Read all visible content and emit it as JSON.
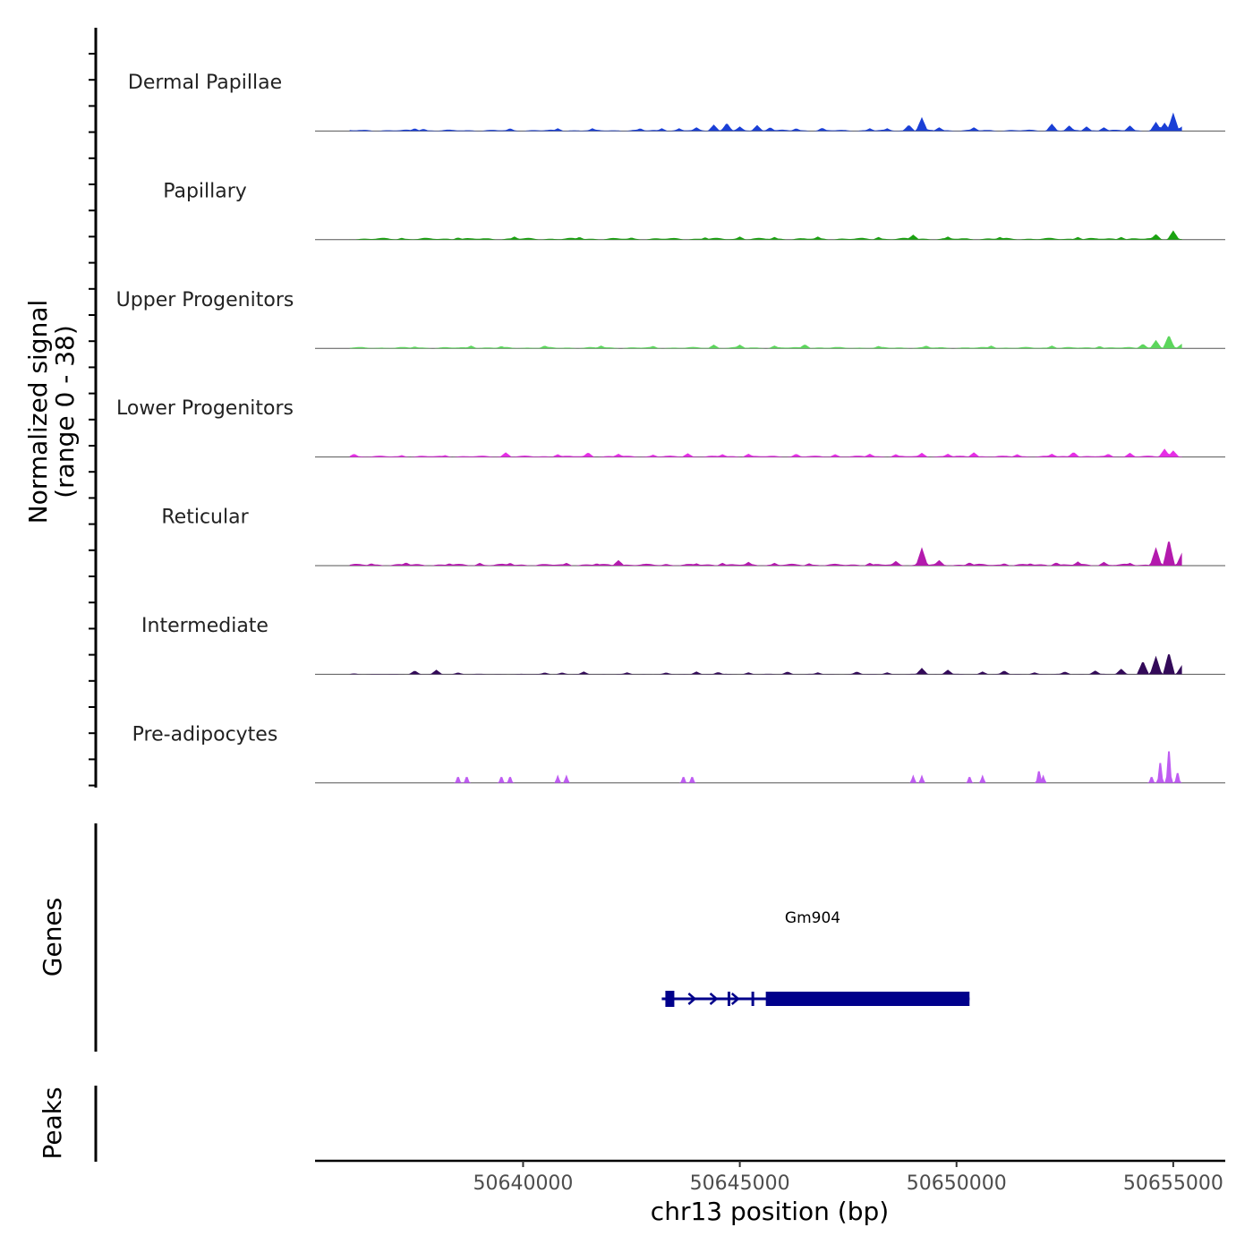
{
  "chart_data": {
    "type": "area",
    "chromosome": "chr13",
    "xlabel": "chr13 position (bp)",
    "ylabel_line1": "Normalized signal",
    "ylabel_line2": "(range 0 - 38)",
    "xlim": [
      50635200,
      50656200
    ],
    "ylim": [
      0,
      38
    ],
    "x_ticks": [
      50640000,
      50645000,
      50650000,
      50655000
    ],
    "x_tick_labels": [
      "50640000",
      "50645000",
      "50650000",
      "50655000"
    ],
    "signal_range": [
      50636000,
      50655200
    ],
    "tracks": [
      {
        "name": "Dermal Papillae",
        "color": "#1a3fd6",
        "baseline": 1.5,
        "peaks": [
          [
            50637500,
            6
          ],
          [
            50637700,
            5
          ],
          [
            50639700,
            6
          ],
          [
            50640800,
            6
          ],
          [
            50641600,
            6
          ],
          [
            50642700,
            6
          ],
          [
            50643200,
            6
          ],
          [
            50643600,
            6
          ],
          [
            50644000,
            8
          ],
          [
            50644400,
            14
          ],
          [
            50644700,
            18
          ],
          [
            50645000,
            10
          ],
          [
            50645400,
            13
          ],
          [
            50645700,
            8
          ],
          [
            50646300,
            6
          ],
          [
            50646900,
            7
          ],
          [
            50648000,
            6
          ],
          [
            50648400,
            6
          ],
          [
            50648900,
            14
          ],
          [
            50649200,
            30
          ],
          [
            50649600,
            8
          ],
          [
            50650400,
            8
          ],
          [
            50652200,
            16
          ],
          [
            50652600,
            12
          ],
          [
            50653000,
            10
          ],
          [
            50653400,
            8
          ],
          [
            50654000,
            12
          ],
          [
            50654600,
            20
          ],
          [
            50654800,
            18
          ],
          [
            50655000,
            40
          ],
          [
            50655200,
            10
          ]
        ],
        "label_text": "Dermal Papillae"
      },
      {
        "name": "Papillary",
        "color": "#1aa310",
        "baseline": 2,
        "peaks": [
          [
            50637200,
            4
          ],
          [
            50638500,
            5
          ],
          [
            50639800,
            7
          ],
          [
            50641300,
            6
          ],
          [
            50642500,
            5
          ],
          [
            50644200,
            5
          ],
          [
            50645000,
            7
          ],
          [
            50645800,
            6
          ],
          [
            50646800,
            7
          ],
          [
            50648200,
            6
          ],
          [
            50649000,
            11
          ],
          [
            50649800,
            7
          ],
          [
            50651000,
            6
          ],
          [
            50652800,
            6
          ],
          [
            50653800,
            6
          ],
          [
            50654600,
            12
          ],
          [
            50655000,
            20
          ]
        ],
        "label_text": "Papillary"
      },
      {
        "name": "Upper Progenitors",
        "color": "#5cd65c",
        "baseline": 1.5,
        "peaks": [
          [
            50637500,
            4
          ],
          [
            50638800,
            6
          ],
          [
            50639500,
            5
          ],
          [
            50640500,
            6
          ],
          [
            50641800,
            6
          ],
          [
            50643000,
            5
          ],
          [
            50644400,
            8
          ],
          [
            50645000,
            8
          ],
          [
            50645800,
            6
          ],
          [
            50646500,
            9
          ],
          [
            50648200,
            5
          ],
          [
            50649300,
            6
          ],
          [
            50650800,
            6
          ],
          [
            50652200,
            6
          ],
          [
            50653300,
            5
          ],
          [
            50654300,
            10
          ],
          [
            50654600,
            18
          ],
          [
            50654900,
            30
          ],
          [
            50655200,
            10
          ]
        ],
        "label_text": "Upper Progenitors"
      },
      {
        "name": "Lower Progenitors",
        "color": "#e62ee6",
        "baseline": 1.5,
        "peaks": [
          [
            50636100,
            7
          ],
          [
            50637200,
            4
          ],
          [
            50638200,
            4
          ],
          [
            50639600,
            10
          ],
          [
            50640800,
            6
          ],
          [
            50641500,
            10
          ],
          [
            50642200,
            7
          ],
          [
            50643000,
            5
          ],
          [
            50643800,
            8
          ],
          [
            50644600,
            6
          ],
          [
            50645200,
            7
          ],
          [
            50646300,
            7
          ],
          [
            50647200,
            6
          ],
          [
            50648000,
            7
          ],
          [
            50648600,
            6
          ],
          [
            50649200,
            9
          ],
          [
            50649800,
            7
          ],
          [
            50650400,
            10
          ],
          [
            50651400,
            6
          ],
          [
            50652200,
            7
          ],
          [
            50652700,
            11
          ],
          [
            50653500,
            7
          ],
          [
            50654000,
            9
          ],
          [
            50654800,
            18
          ],
          [
            50655000,
            14
          ]
        ],
        "label_text": "Lower Progenitors"
      },
      {
        "name": "Reticular",
        "color": "#b31aad",
        "baseline": 2,
        "peaks": [
          [
            50636500,
            5
          ],
          [
            50637300,
            7
          ],
          [
            50638300,
            5
          ],
          [
            50639000,
            6
          ],
          [
            50639700,
            6
          ],
          [
            50640500,
            4
          ],
          [
            50641000,
            6
          ],
          [
            50641700,
            5
          ],
          [
            50642200,
            12
          ],
          [
            50643300,
            4
          ],
          [
            50644000,
            5
          ],
          [
            50644600,
            6
          ],
          [
            50645200,
            8
          ],
          [
            50645800,
            6
          ],
          [
            50646600,
            5
          ],
          [
            50647200,
            4
          ],
          [
            50648000,
            6
          ],
          [
            50648600,
            10
          ],
          [
            50649200,
            40
          ],
          [
            50649600,
            12
          ],
          [
            50650300,
            7
          ],
          [
            50651100,
            5
          ],
          [
            50651700,
            5
          ],
          [
            50652300,
            7
          ],
          [
            50652800,
            9
          ],
          [
            50653400,
            8
          ],
          [
            50654000,
            6
          ],
          [
            50654600,
            40
          ],
          [
            50654900,
            60
          ],
          [
            50655200,
            28
          ]
        ],
        "label_text": "Reticular"
      },
      {
        "name": "Intermediate",
        "color": "#330a59",
        "baseline": 0.5,
        "peaks": [
          [
            50636100,
            2
          ],
          [
            50637500,
            8
          ],
          [
            50638000,
            10
          ],
          [
            50638500,
            4
          ],
          [
            50640500,
            4
          ],
          [
            50640900,
            4
          ],
          [
            50641400,
            6
          ],
          [
            50642400,
            4
          ],
          [
            50643300,
            4
          ],
          [
            50644000,
            6
          ],
          [
            50644500,
            5
          ],
          [
            50645200,
            4
          ],
          [
            50646100,
            6
          ],
          [
            50646800,
            4
          ],
          [
            50647700,
            6
          ],
          [
            50648400,
            4
          ],
          [
            50649200,
            14
          ],
          [
            50649800,
            10
          ],
          [
            50650600,
            6
          ],
          [
            50651100,
            8
          ],
          [
            50651800,
            4
          ],
          [
            50652500,
            6
          ],
          [
            50653200,
            8
          ],
          [
            50653800,
            12
          ],
          [
            50654300,
            30
          ],
          [
            50654600,
            40
          ],
          [
            50654900,
            50
          ],
          [
            50655200,
            20
          ]
        ],
        "label_text": "Intermediate"
      },
      {
        "name": "Pre-adipocytes",
        "color": "#bf5cf2",
        "baseline": 0,
        "peaks": [
          [
            50638500,
            18
          ],
          [
            50638700,
            18
          ],
          [
            50639500,
            18
          ],
          [
            50639700,
            18
          ],
          [
            50640800,
            18
          ],
          [
            50641000,
            18
          ],
          [
            50643700,
            18
          ],
          [
            50643900,
            18
          ],
          [
            50649000,
            18
          ],
          [
            50649200,
            18
          ],
          [
            50650300,
            18
          ],
          [
            50650600,
            18
          ],
          [
            50651900,
            35
          ],
          [
            50652000,
            18
          ],
          [
            50654500,
            18
          ],
          [
            50654700,
            60
          ],
          [
            50654900,
            95
          ],
          [
            50655100,
            30
          ],
          [
            50655300,
            18
          ]
        ],
        "label_text": "Pre-adipocytes"
      }
    ],
    "gene_track_title": "Genes",
    "peaks_track_title": "Peaks",
    "gene": {
      "name": "Gm904",
      "start": 50643200,
      "end": 50650300,
      "thick_start": 50645600,
      "thick_end": 50650300,
      "color": "#00008b"
    }
  }
}
